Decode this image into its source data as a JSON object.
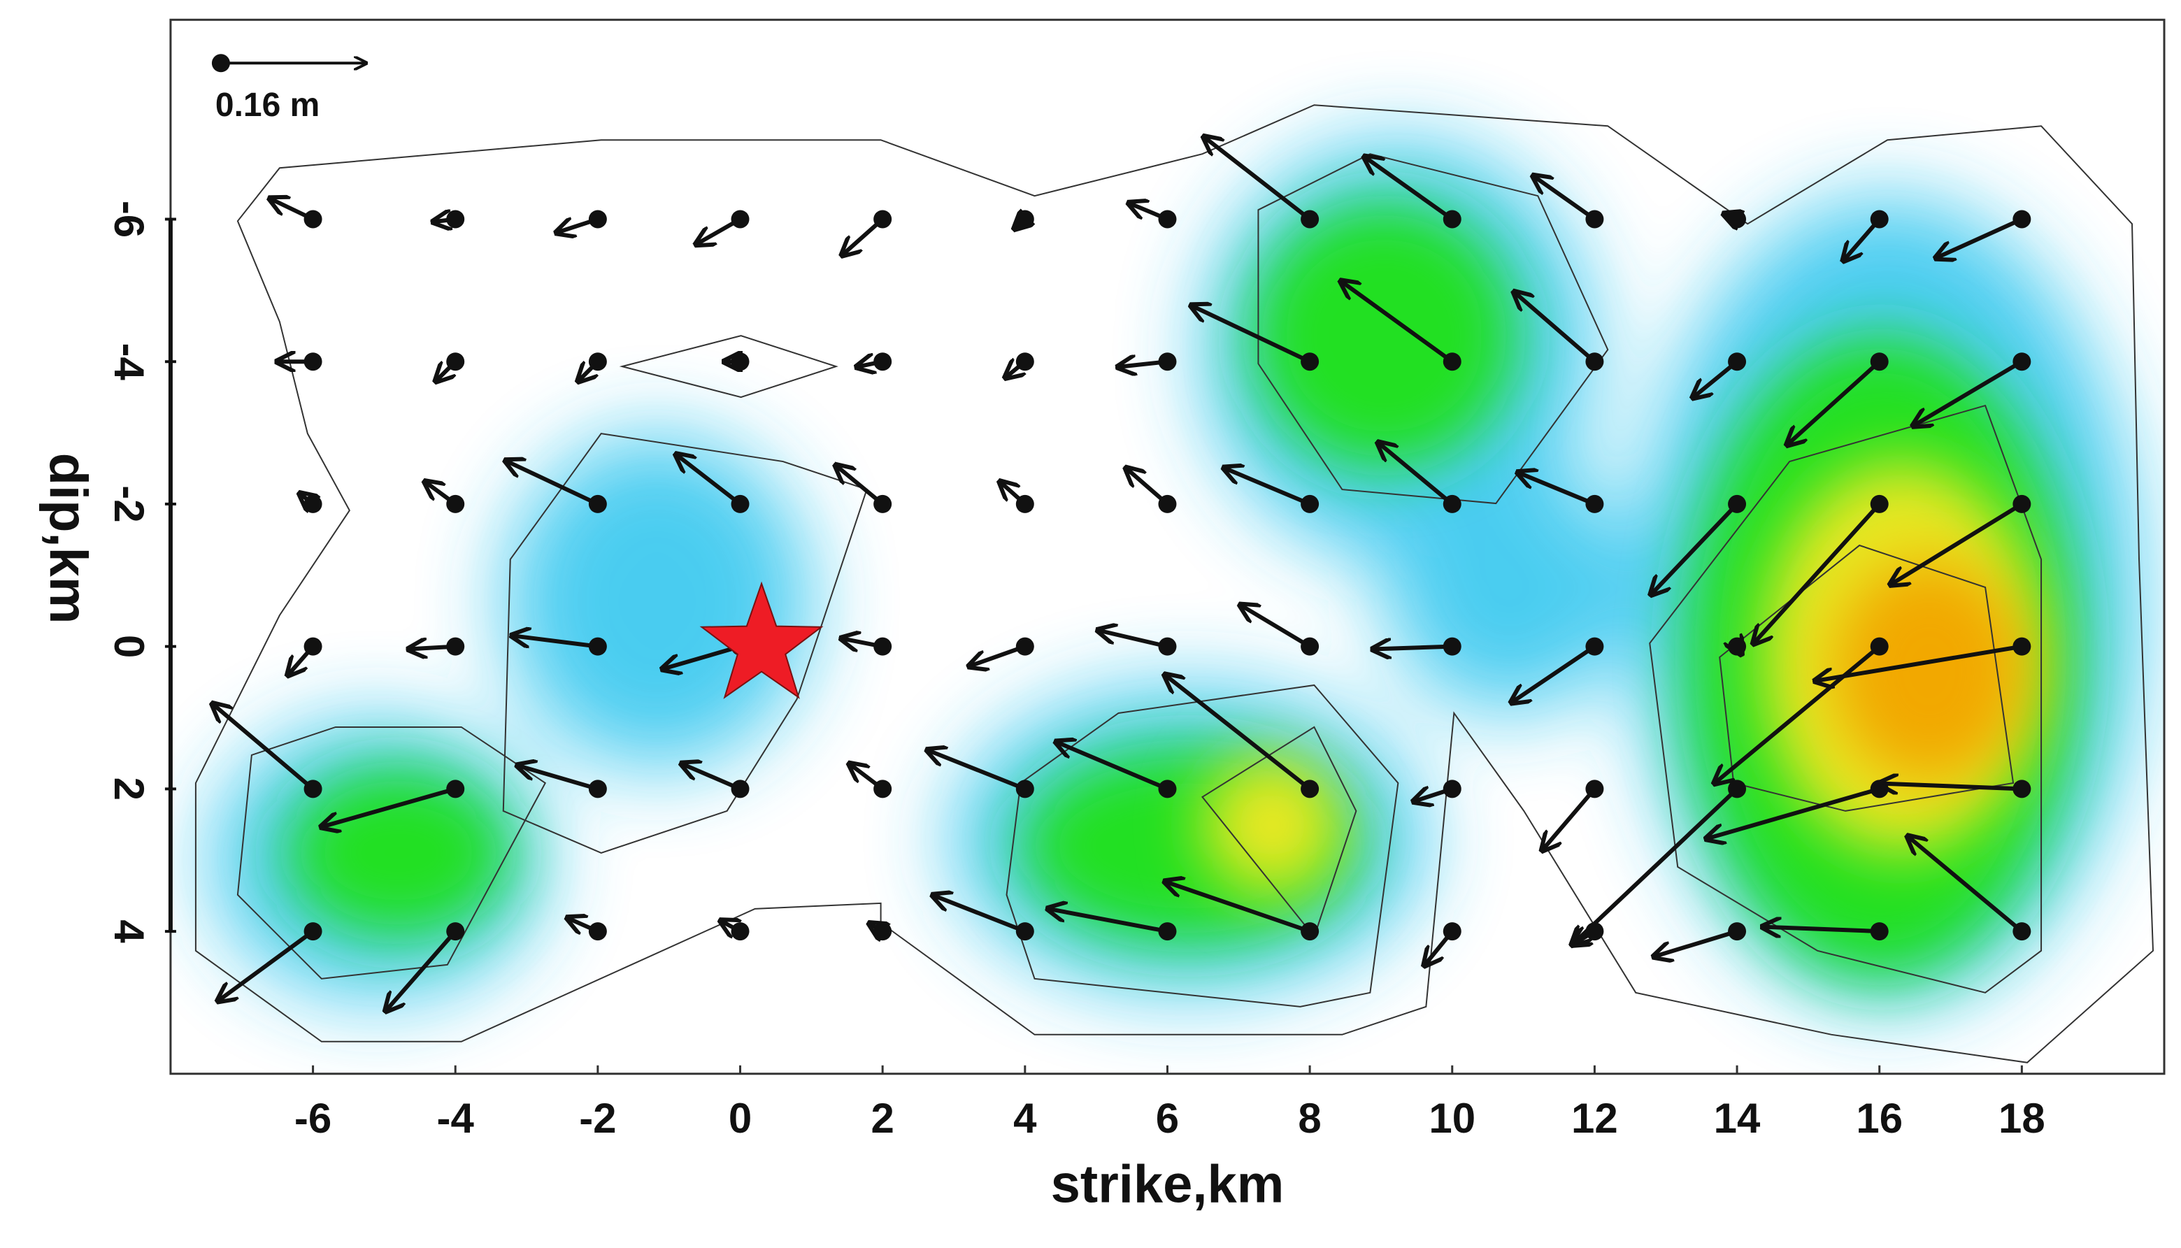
{
  "chart_data": {
    "type": "quiver",
    "x_label": "strike,km",
    "y_label": "dip,km",
    "xlim": [
      -8,
      20
    ],
    "ylim": [
      -8.8,
      6
    ],
    "y_inverted": true,
    "xticks": [
      -6,
      -4,
      -2,
      0,
      2,
      4,
      6,
      8,
      10,
      12,
      14,
      16,
      18
    ],
    "yticks": [
      -6,
      -4,
      -2,
      0,
      2,
      4
    ],
    "arrow_color": "#111111",
    "scale_key": {
      "value": 0.16,
      "label": "0.16 m"
    },
    "epicenter": {
      "x": 0.3,
      "y": 0,
      "color": "#ee1c25"
    },
    "points": [
      {
        "x": -6,
        "y": -6,
        "u": -0.048,
        "v": -0.023
      },
      {
        "x": -4,
        "y": -6,
        "u": -0.025,
        "v": 0.003
      },
      {
        "x": -2,
        "y": -6,
        "u": -0.046,
        "v": 0.015
      },
      {
        "x": 0,
        "y": -6,
        "u": -0.049,
        "v": 0.028
      },
      {
        "x": 2,
        "y": -6,
        "u": -0.045,
        "v": 0.04
      },
      {
        "x": 4,
        "y": -6,
        "u": -0.012,
        "v": 0.011
      },
      {
        "x": 6,
        "y": -6,
        "u": -0.043,
        "v": -0.018
      },
      {
        "x": 8,
        "y": -6,
        "u": -0.117,
        "v": -0.091
      },
      {
        "x": 10,
        "y": -6,
        "u": -0.097,
        "v": -0.069
      },
      {
        "x": 12,
        "y": -6,
        "u": -0.068,
        "v": -0.048
      },
      {
        "x": 14,
        "y": -6,
        "u": -0.015,
        "v": -0.006
      },
      {
        "x": 16,
        "y": -6,
        "u": -0.04,
        "v": 0.046
      },
      {
        "x": 18,
        "y": -6,
        "u": -0.095,
        "v": 0.043
      },
      {
        "x": -6,
        "y": -4,
        "u": -0.04,
        "v": 0
      },
      {
        "x": -4,
        "y": -4,
        "u": -0.022,
        "v": 0.022
      },
      {
        "x": -2,
        "y": -4,
        "u": -0.022,
        "v": 0.022
      },
      {
        "x": 0,
        "y": -4,
        "u": -0.018,
        "v": 0
      },
      {
        "x": 2,
        "y": -4,
        "u": -0.029,
        "v": 0.006
      },
      {
        "x": 4,
        "y": -4,
        "u": -0.022,
        "v": 0.018
      },
      {
        "x": 6,
        "y": -4,
        "u": -0.055,
        "v": 0.006
      },
      {
        "x": 8,
        "y": -4,
        "u": -0.131,
        "v": -0.062
      },
      {
        "x": 10,
        "y": -4,
        "u": -0.123,
        "v": -0.089
      },
      {
        "x": 12,
        "y": -4,
        "u": -0.089,
        "v": -0.077
      },
      {
        "x": 14,
        "y": -4,
        "u": -0.049,
        "v": 0.04
      },
      {
        "x": 16,
        "y": -4,
        "u": -0.102,
        "v": 0.092
      },
      {
        "x": 18,
        "y": -4,
        "u": -0.12,
        "v": 0.071
      },
      {
        "x": -6,
        "y": -2,
        "u": -0.015,
        "v": -0.012
      },
      {
        "x": -4,
        "y": -2,
        "u": -0.034,
        "v": -0.025
      },
      {
        "x": -2,
        "y": -2,
        "u": -0.102,
        "v": -0.048
      },
      {
        "x": 0,
        "y": -2,
        "u": -0.071,
        "v": -0.055
      },
      {
        "x": 2,
        "y": -2,
        "u": -0.052,
        "v": -0.043
      },
      {
        "x": 4,
        "y": -2,
        "u": -0.028,
        "v": -0.025
      },
      {
        "x": 6,
        "y": -2,
        "u": -0.046,
        "v": -0.04
      },
      {
        "x": 8,
        "y": -2,
        "u": -0.095,
        "v": -0.04
      },
      {
        "x": 10,
        "y": -2,
        "u": -0.082,
        "v": -0.068
      },
      {
        "x": 12,
        "y": -2,
        "u": -0.085,
        "v": -0.035
      },
      {
        "x": 14,
        "y": -2,
        "u": -0.095,
        "v": 0.1
      },
      {
        "x": 16,
        "y": -2,
        "u": -0.139,
        "v": 0.154
      },
      {
        "x": 18,
        "y": -2,
        "u": -0.145,
        "v": 0.089
      },
      {
        "x": -6,
        "y": 0,
        "u": -0.028,
        "v": 0.032
      },
      {
        "x": -4,
        "y": 0,
        "u": -0.052,
        "v": 0.003
      },
      {
        "x": -2,
        "y": 0,
        "u": -0.095,
        "v": -0.012
      },
      {
        "x": 0,
        "y": 0,
        "u": -0.086,
        "v": 0.025
      },
      {
        "x": 2,
        "y": 0,
        "u": -0.046,
        "v": -0.009
      },
      {
        "x": 4,
        "y": 0,
        "u": -0.062,
        "v": 0.022
      },
      {
        "x": 6,
        "y": 0,
        "u": -0.077,
        "v": -0.018
      },
      {
        "x": 8,
        "y": 0,
        "u": -0.077,
        "v": -0.046
      },
      {
        "x": 10,
        "y": 0,
        "u": -0.088,
        "v": 0.003
      },
      {
        "x": 12,
        "y": 0,
        "u": -0.092,
        "v": 0.062
      },
      {
        "x": 14,
        "y": 0,
        "u": 0.005,
        "v": 0.009
      },
      {
        "x": 16,
        "y": 0,
        "u": -0.182,
        "v": 0.151
      },
      {
        "x": 18,
        "y": 0,
        "u": -0.228,
        "v": 0.038
      },
      {
        "x": -6,
        "y": 2,
        "u": -0.111,
        "v": -0.094
      },
      {
        "x": -4,
        "y": 2,
        "u": -0.148,
        "v": 0.042
      },
      {
        "x": -2,
        "y": 2,
        "u": -0.089,
        "v": -0.026
      },
      {
        "x": 0,
        "y": 2,
        "u": -0.065,
        "v": -0.028
      },
      {
        "x": 2,
        "y": 2,
        "u": -0.037,
        "v": -0.028
      },
      {
        "x": 4,
        "y": 2,
        "u": -0.108,
        "v": -0.043
      },
      {
        "x": 6,
        "y": 2,
        "u": -0.123,
        "v": -0.052
      },
      {
        "x": 8,
        "y": 2,
        "u": -0.16,
        "v": -0.126
      },
      {
        "x": 10,
        "y": 2,
        "u": -0.043,
        "v": 0.014
      },
      {
        "x": 12,
        "y": 2,
        "u": -0.058,
        "v": 0.068
      },
      {
        "x": 14,
        "y": 2,
        "u": -0.182,
        "v": 0.172
      },
      {
        "x": 16,
        "y": 2,
        "u": -0.191,
        "v": 0.055
      },
      {
        "x": 18,
        "y": 2,
        "u": -0.157,
        "v": -0.006
      },
      {
        "x": -6,
        "y": 4,
        "u": -0.105,
        "v": 0.077
      },
      {
        "x": -4,
        "y": 4,
        "u": -0.077,
        "v": 0.088
      },
      {
        "x": -2,
        "y": 4,
        "u": -0.034,
        "v": -0.015
      },
      {
        "x": 0,
        "y": 4,
        "u": -0.022,
        "v": -0.012
      },
      {
        "x": 2,
        "y": 4,
        "u": -0.015,
        "v": -0.009
      },
      {
        "x": 4,
        "y": 4,
        "u": -0.102,
        "v": -0.04
      },
      {
        "x": 6,
        "y": 4,
        "u": -0.132,
        "v": -0.025
      },
      {
        "x": 8,
        "y": 4,
        "u": -0.16,
        "v": -0.055
      },
      {
        "x": 10,
        "y": 4,
        "u": -0.031,
        "v": 0.038
      },
      {
        "x": 12,
        "y": 4,
        "u": -0.025,
        "v": 0.015
      },
      {
        "x": 14,
        "y": 4,
        "u": -0.092,
        "v": 0.028
      },
      {
        "x": 16,
        "y": 4,
        "u": -0.129,
        "v": -0.005
      },
      {
        "x": 18,
        "y": 4,
        "u": -0.126,
        "v": -0.105
      }
    ]
  }
}
